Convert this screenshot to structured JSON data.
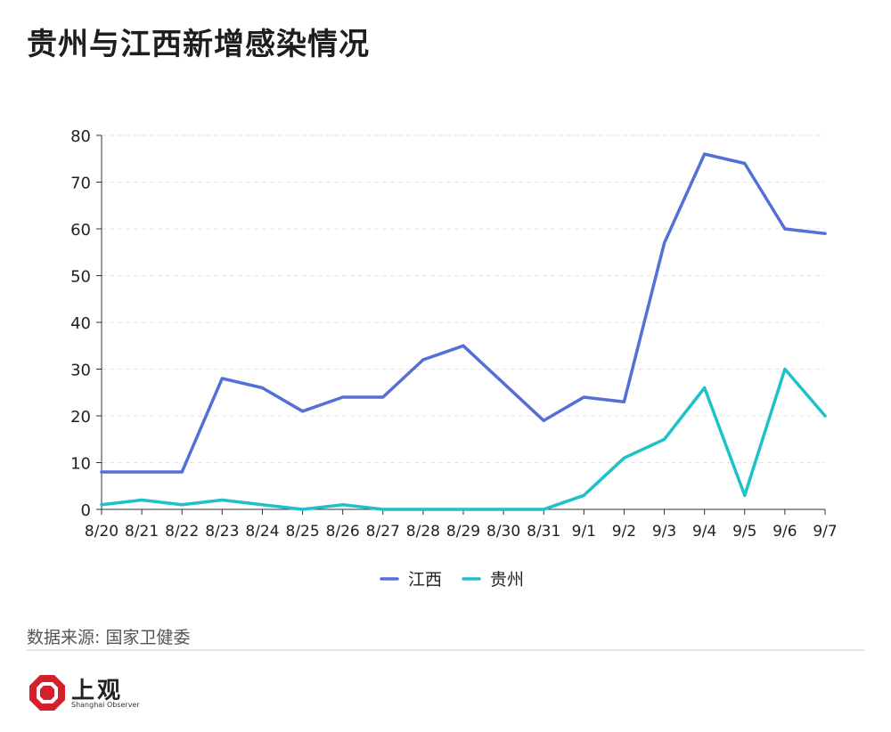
{
  "title": "贵州与江西新增感染情况",
  "source": "数据来源: 国家卫健委",
  "logo": {
    "cn": "上观",
    "en": "Shanghai Observer",
    "color": "#d4202a"
  },
  "chart_data": {
    "type": "line",
    "title": "贵州与江西新增感染情况",
    "xlabel": "",
    "ylabel": "",
    "categories": [
      "8/20",
      "8/21",
      "8/22",
      "8/23",
      "8/24",
      "8/25",
      "8/26",
      "8/27",
      "8/28",
      "8/29",
      "8/30",
      "8/31",
      "9/1",
      "9/2",
      "9/3",
      "9/4",
      "9/5",
      "9/6",
      "9/7"
    ],
    "ylim": [
      0,
      80
    ],
    "yticks": [
      0,
      10,
      20,
      30,
      40,
      50,
      60,
      70,
      80
    ],
    "grid": true,
    "legend": "bottom-center",
    "series": [
      {
        "name": "江西",
        "color": "#5470d6",
        "values": [
          8,
          8,
          8,
          28,
          26,
          21,
          24,
          24,
          32,
          35,
          27,
          19,
          24,
          23,
          57,
          76,
          74,
          60,
          59
        ]
      },
      {
        "name": "贵州",
        "color": "#1fc1c8",
        "values": [
          1,
          2,
          1,
          2,
          1,
          0,
          1,
          0,
          0,
          0,
          0,
          0,
          3,
          11,
          15,
          26,
          3,
          30,
          20
        ]
      }
    ]
  }
}
